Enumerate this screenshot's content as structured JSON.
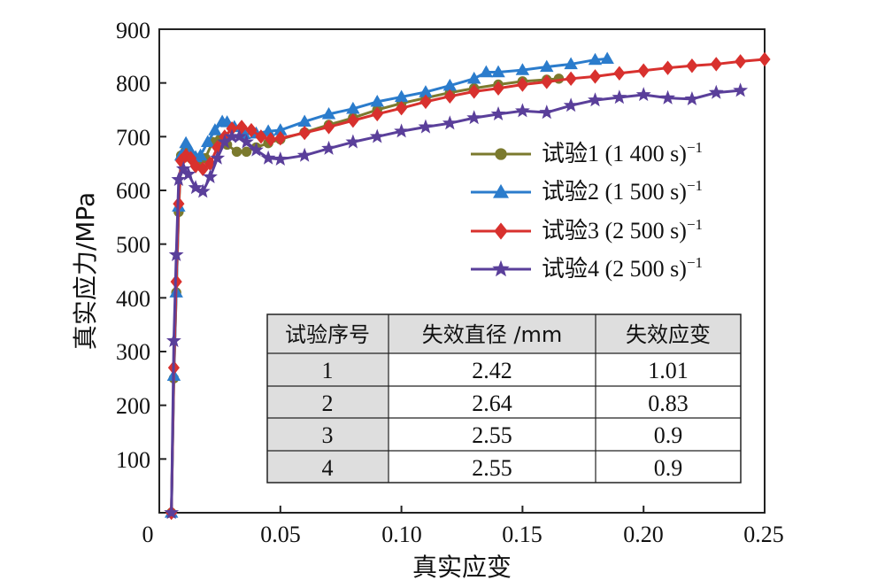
{
  "chart_data": {
    "type": "line",
    "xlabel": "真实应变",
    "ylabel": "真实应力/MPa",
    "xlim": [
      0,
      0.25
    ],
    "ylim": [
      0,
      900
    ],
    "x_ticks": [
      "0",
      "0.05",
      "0.10",
      "0.15",
      "0.20",
      "0.25"
    ],
    "y_ticks": [
      "100",
      "200",
      "300",
      "400",
      "500",
      "600",
      "700",
      "800",
      "900"
    ],
    "legend_position": "right",
    "grid": false,
    "series": [
      {
        "name": "试验1 (1 400 s)",
        "superscript": "−1",
        "color": "#7b7a2e",
        "marker": "circle",
        "x": [
          0.005,
          0.006,
          0.007,
          0.008,
          0.009,
          0.011,
          0.013,
          0.016,
          0.019,
          0.022,
          0.025,
          0.028,
          0.032,
          0.036,
          0.04,
          0.045,
          0.05,
          0.06,
          0.07,
          0.08,
          0.09,
          0.1,
          0.11,
          0.12,
          0.13,
          0.14,
          0.15,
          0.16,
          0.165
        ],
        "y": [
          0,
          250,
          410,
          560,
          665,
          675,
          660,
          650,
          660,
          690,
          695,
          685,
          672,
          672,
          680,
          688,
          695,
          708,
          722,
          735,
          750,
          762,
          772,
          782,
          790,
          797,
          803,
          806,
          808
        ]
      },
      {
        "name": "试验2 (1 500 s)",
        "superscript": "−1",
        "color": "#2b7ccc",
        "marker": "triangle",
        "x": [
          0.005,
          0.006,
          0.007,
          0.008,
          0.009,
          0.011,
          0.013,
          0.015,
          0.017,
          0.02,
          0.023,
          0.026,
          0.028,
          0.031,
          0.035,
          0.04,
          0.045,
          0.05,
          0.06,
          0.07,
          0.08,
          0.09,
          0.1,
          0.11,
          0.12,
          0.13,
          0.135,
          0.14,
          0.15,
          0.16,
          0.17,
          0.18,
          0.185
        ],
        "y": [
          0,
          255,
          410,
          570,
          665,
          688,
          672,
          662,
          665,
          690,
          712,
          728,
          727,
          718,
          705,
          706,
          710,
          712,
          728,
          742,
          752,
          765,
          774,
          783,
          795,
          808,
          820,
          820,
          824,
          830,
          835,
          843,
          845
        ]
      },
      {
        "name": "试验3 (2 500 s)",
        "superscript": "−1",
        "color": "#d8312e",
        "marker": "diamond",
        "x": [
          0.005,
          0.006,
          0.007,
          0.008,
          0.009,
          0.011,
          0.013,
          0.015,
          0.018,
          0.021,
          0.024,
          0.027,
          0.03,
          0.034,
          0.038,
          0.042,
          0.046,
          0.05,
          0.06,
          0.07,
          0.08,
          0.09,
          0.1,
          0.11,
          0.12,
          0.13,
          0.14,
          0.15,
          0.16,
          0.17,
          0.18,
          0.19,
          0.2,
          0.21,
          0.22,
          0.23,
          0.24,
          0.25
        ],
        "y": [
          0,
          270,
          430,
          575,
          655,
          665,
          660,
          645,
          640,
          650,
          680,
          700,
          715,
          718,
          712,
          700,
          695,
          697,
          707,
          718,
          730,
          742,
          753,
          765,
          775,
          784,
          790,
          797,
          802,
          808,
          812,
          818,
          823,
          828,
          832,
          835,
          840,
          844
        ]
      },
      {
        "name": "试验4 (2 500 s)",
        "superscript": "−1",
        "color": "#5a3f9a",
        "marker": "star",
        "x": [
          0.005,
          0.006,
          0.007,
          0.008,
          0.01,
          0.012,
          0.015,
          0.018,
          0.021,
          0.024,
          0.027,
          0.03,
          0.033,
          0.036,
          0.04,
          0.045,
          0.05,
          0.06,
          0.07,
          0.08,
          0.09,
          0.1,
          0.11,
          0.12,
          0.13,
          0.14,
          0.15,
          0.16,
          0.17,
          0.18,
          0.19,
          0.2,
          0.21,
          0.22,
          0.23,
          0.24
        ],
        "y": [
          0,
          320,
          480,
          620,
          640,
          630,
          605,
          598,
          625,
          660,
          690,
          700,
          700,
          690,
          675,
          660,
          658,
          665,
          678,
          690,
          700,
          710,
          718,
          725,
          735,
          742,
          748,
          745,
          758,
          768,
          773,
          778,
          772,
          770,
          782,
          786
        ]
      }
    ]
  },
  "table": {
    "headers": [
      "试验序号",
      "失效直径 /mm",
      "失效应变"
    ],
    "rows": [
      [
        "1",
        "2.42",
        "1.01"
      ],
      [
        "2",
        "2.64",
        "0.83"
      ],
      [
        "3",
        "2.55",
        "0.9"
      ],
      [
        "4",
        "2.55",
        "0.9"
      ]
    ]
  }
}
